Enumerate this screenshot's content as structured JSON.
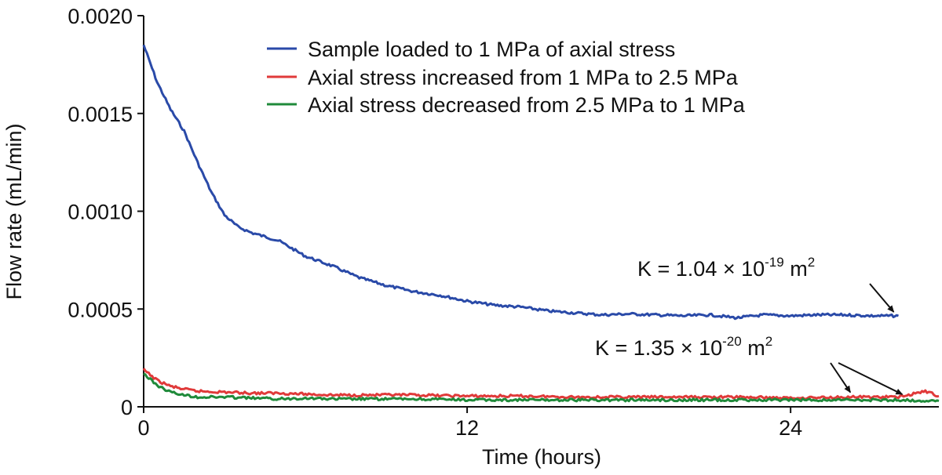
{
  "chart_data": {
    "type": "line",
    "title": "",
    "xlabel": "Time (hours)",
    "ylabel": "Flow rate (mL/min)",
    "xlim": [
      0,
      29.5
    ],
    "ylim": [
      0,
      0.002
    ],
    "xticks": [
      0,
      12,
      24
    ],
    "xtick_labels": [
      "0",
      "12",
      "24"
    ],
    "yticks": [
      0,
      0.0005,
      0.001,
      0.0015,
      0.002
    ],
    "ytick_labels": [
      "0",
      "0.0005",
      "0.0010",
      "0.0015",
      "0.0020"
    ],
    "grid": false,
    "legend_position": "top-right",
    "series": [
      {
        "name": "Sample loaded to 1 MPa of axial stress",
        "color": "#2a4aa8",
        "x": [
          0,
          0.5,
          1,
          1.5,
          2,
          2.5,
          3,
          3.5,
          4,
          5,
          6,
          7,
          8,
          9,
          10,
          11,
          12,
          13,
          14,
          15,
          16,
          17,
          18,
          19,
          20,
          21,
          22,
          23,
          24,
          25,
          26,
          27,
          28
        ],
        "y": [
          0.00185,
          0.00166,
          0.00152,
          0.00141,
          0.00125,
          0.0011,
          0.00098,
          0.00092,
          0.00089,
          0.00085,
          0.00077,
          0.00072,
          0.00066,
          0.00062,
          0.00059,
          0.00057,
          0.00054,
          0.00052,
          0.00051,
          0.00049,
          0.00048,
          0.00047,
          0.000475,
          0.00047,
          0.000465,
          0.00047,
          0.000455,
          0.00047,
          0.000465,
          0.00047,
          0.00047,
          0.000465,
          0.000465
        ]
      },
      {
        "name": "Axial stress increased from 1 MPa to 2.5 MPa",
        "color": "#e03a3a",
        "x": [
          0,
          0.5,
          1,
          1.5,
          2,
          3,
          4,
          5,
          6,
          7,
          8,
          10,
          12,
          14,
          16,
          18,
          20,
          22,
          24,
          26,
          28,
          29,
          29.5
        ],
        "y": [
          0.00019,
          0.000135,
          0.000105,
          9e-05,
          8e-05,
          7.5e-05,
          7e-05,
          7e-05,
          6.5e-05,
          6e-05,
          6e-05,
          6e-05,
          5.5e-05,
          5.5e-05,
          5e-05,
          5e-05,
          5e-05,
          5e-05,
          4.5e-05,
          5e-05,
          5e-05,
          8e-05,
          5.5e-05
        ]
      },
      {
        "name": "Axial stress decreased from 2.5 MPa to 1 MPa",
        "color": "#1f8a3a",
        "x": [
          0,
          0.5,
          1,
          1.5,
          2,
          3,
          4,
          5,
          6,
          7,
          8,
          10,
          12,
          14,
          16,
          18,
          20,
          22,
          24,
          26,
          28,
          29.5
        ],
        "y": [
          0.00017,
          0.00011,
          7.5e-05,
          6e-05,
          5e-05,
          5e-05,
          4.5e-05,
          4e-05,
          4.5e-05,
          4e-05,
          4e-05,
          4e-05,
          3.5e-05,
          3.5e-05,
          3.5e-05,
          3.5e-05,
          3.5e-05,
          3.5e-05,
          3.5e-05,
          3.5e-05,
          3.5e-05,
          3e-05
        ]
      }
    ],
    "annotations": [
      {
        "name": "blue",
        "base": "K = 1.04 × 10",
        "exp": "-19",
        "unit": " m",
        "unit_exp": "2",
        "arrow_targets": [
          [
            28,
            0.000465
          ]
        ]
      },
      {
        "name": "red-green",
        "base": "K = 1.35 × 10",
        "exp": "-20",
        "unit": " m",
        "unit_exp": "2",
        "arrow_targets": [
          [
            26.1,
            5e-05
          ],
          [
            28.2,
            4e-05
          ]
        ]
      }
    ]
  }
}
